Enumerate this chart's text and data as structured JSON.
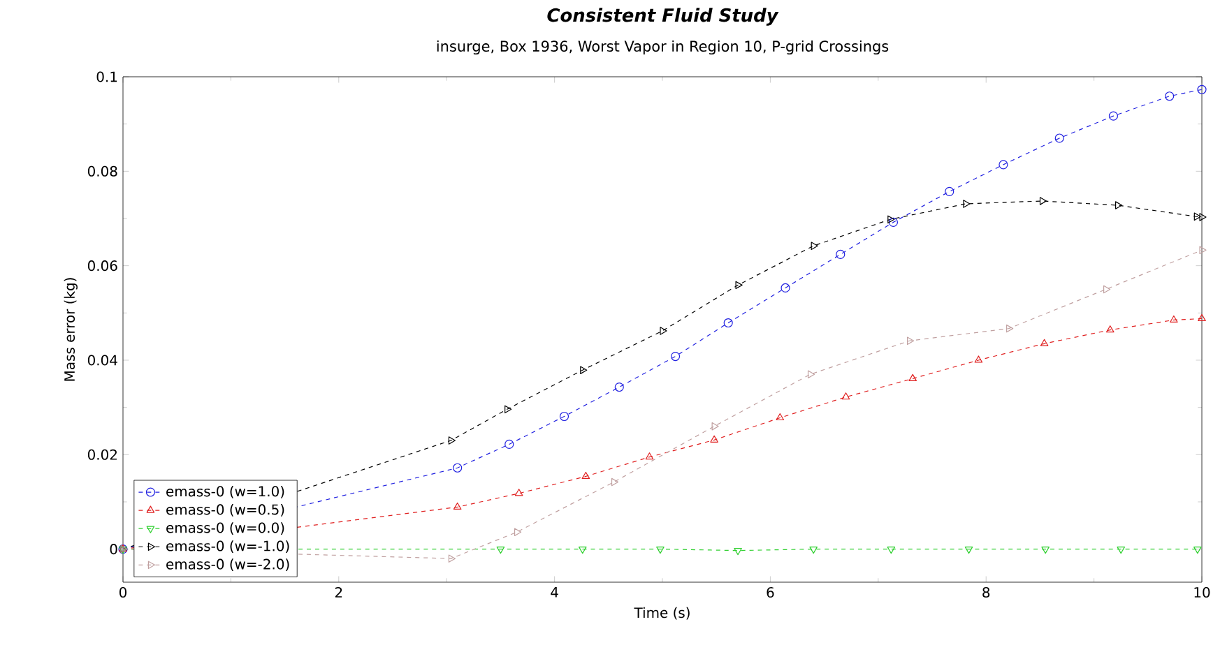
{
  "chart_data": {
    "type": "line",
    "title": "Consistent Fluid Study",
    "subtitle": "insurge, Box 1936, Worst Vapor in Region 10, P-grid Crossings",
    "xlabel": "Time (s)",
    "ylabel": "Mass error (kg)",
    "xlim": [
      0,
      10
    ],
    "ylim": [
      -0.007,
      0.1
    ],
    "xticks": [
      0,
      2,
      4,
      6,
      8,
      10
    ],
    "yticks": [
      0,
      0.02,
      0.04,
      0.06,
      0.08,
      0.1
    ],
    "grid": false,
    "legend": "bottom left",
    "line_style": "dashed",
    "series": [
      {
        "name": "emass-0 (w=1.0)",
        "color": "#2020e0",
        "marker": "circle",
        "x": [
          0,
          3.1,
          3.58,
          4.09,
          4.6,
          5.12,
          5.61,
          6.14,
          6.65,
          7.14,
          7.66,
          8.16,
          8.68,
          9.18,
          9.7,
          10
        ],
        "values": [
          0,
          0.0172,
          0.0222,
          0.0281,
          0.0343,
          0.0408,
          0.0479,
          0.0553,
          0.0624,
          0.0692,
          0.0757,
          0.0814,
          0.087,
          0.0917,
          0.0959,
          0.0973
        ]
      },
      {
        "name": "emass-0 (w=0.5)",
        "color": "#e02020",
        "marker": "triangle",
        "x": [
          0,
          3.1,
          3.67,
          4.29,
          4.88,
          5.48,
          6.09,
          6.7,
          7.32,
          7.93,
          8.54,
          9.15,
          9.74,
          10
        ],
        "values": [
          0,
          0.0089,
          0.0118,
          0.0154,
          0.0195,
          0.0231,
          0.0278,
          0.0322,
          0.0361,
          0.04,
          0.0435,
          0.0464,
          0.0485,
          0.0488
        ]
      },
      {
        "name": "emass-0 (w=0.0)",
        "color": "#30d030",
        "marker": "triangle_down",
        "x": [
          0,
          3.5,
          4.26,
          4.98,
          5.7,
          6.4,
          7.12,
          7.84,
          8.55,
          9.25,
          9.96
        ],
        "values": [
          0,
          0,
          0,
          0,
          -0.0003,
          0,
          0,
          0,
          0,
          0,
          0
        ]
      },
      {
        "name": "emass-0 (w=-1.0)",
        "color": "#000000",
        "marker": "triangle_right",
        "x": [
          0,
          3.04,
          3.56,
          4.26,
          5.0,
          5.7,
          6.4,
          7.11,
          7.81,
          8.52,
          9.22,
          9.95,
          10
        ],
        "values": [
          0,
          0.023,
          0.0296,
          0.0379,
          0.0462,
          0.0559,
          0.0642,
          0.0698,
          0.0731,
          0.0737,
          0.0728,
          0.0704,
          0.0703
        ]
      },
      {
        "name": "emass-0 (w=-2.0)",
        "color": "#c0a0a0",
        "marker": "triangle_right",
        "x": [
          0,
          3.04,
          3.65,
          4.55,
          5.48,
          6.37,
          7.29,
          8.21,
          9.11,
          10
        ],
        "values": [
          0,
          -0.002,
          0.0036,
          0.0142,
          0.026,
          0.037,
          0.0441,
          0.0467,
          0.055,
          0.0633
        ]
      }
    ]
  }
}
